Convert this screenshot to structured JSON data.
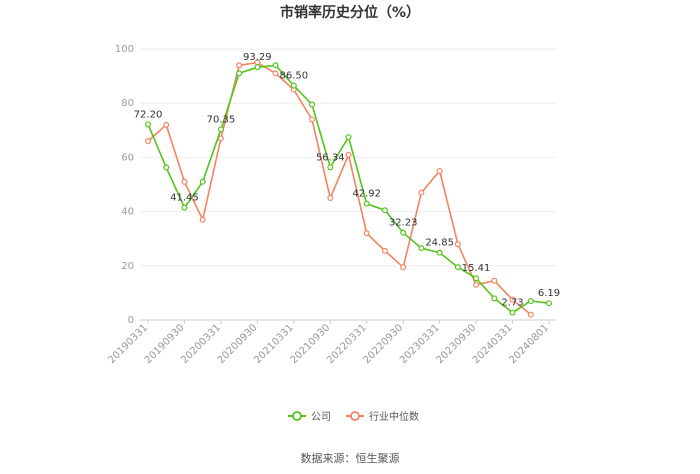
{
  "chart_data": {
    "type": "line",
    "title": "市销率历史分位（%）",
    "ylim": [
      0,
      100
    ],
    "yticks": [
      0,
      20,
      40,
      60,
      80,
      100
    ],
    "grid": true,
    "legend_position": "bottom",
    "x": [
      "20190331",
      "",
      "20190930",
      "",
      "20200331",
      "",
      "20200930",
      "",
      "20210331",
      "",
      "20210930",
      "",
      "20220331",
      "",
      "20220930",
      "",
      "20230331",
      "",
      "20230930",
      "",
      "20240331",
      "",
      "20240801"
    ],
    "series": [
      {
        "name": "公司",
        "color": "#52c41a",
        "values": [
          72.2,
          56.3,
          41.45,
          51.0,
          70.35,
          91.0,
          93.29,
          94.0,
          86.5,
          79.5,
          56.34,
          67.5,
          42.92,
          40.5,
          32.23,
          26.5,
          24.85,
          19.5,
          15.41,
          8.0,
          2.73,
          7.0,
          6.19
        ],
        "labels": [
          "72.20",
          "",
          "41.45",
          "",
          "70.35",
          "",
          "93.29",
          "",
          "86.50",
          "",
          "56.34",
          "",
          "42.92",
          "",
          "32.23",
          "",
          "24.85",
          "",
          "15.41",
          "",
          "2.73",
          "",
          "6.19"
        ]
      },
      {
        "name": "行业中位数",
        "color": "#f4845f",
        "values": [
          66.0,
          72.0,
          51.0,
          37.0,
          67.0,
          94.0,
          95.0,
          91.0,
          85.0,
          74.0,
          45.0,
          61.0,
          32.0,
          25.5,
          19.5,
          47.0,
          55.0,
          28.0,
          13.0,
          14.5,
          7.5,
          2.0,
          null
        ]
      }
    ]
  },
  "legend": [
    {
      "label": "公司",
      "color": "#52c41a"
    },
    {
      "label": "行业中位数",
      "color": "#f4845f"
    }
  ],
  "source": "数据来源：恒生聚源"
}
